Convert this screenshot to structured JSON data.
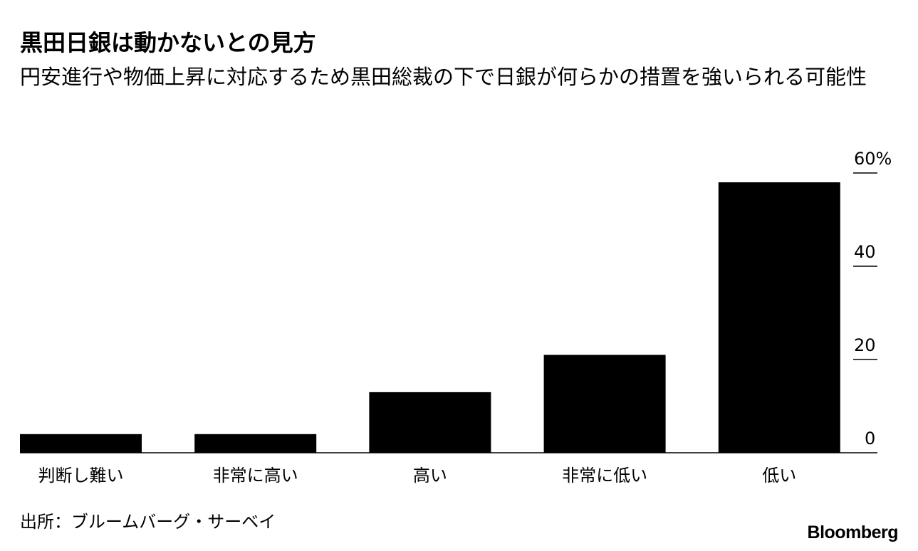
{
  "title": "黒田日銀は動かないとの見方",
  "subtitle": "円安進行や物価上昇に対応するため黒田総裁の下で日銀が何らかの措置を強いられる可能性",
  "source": "出所：ブルームバーグ・サーベイ",
  "logo": "Bloomberg",
  "chart_data": {
    "type": "bar",
    "categories": [
      "判断し難い",
      "非常に高い",
      "高い",
      "非常に低い",
      "低い"
    ],
    "values": [
      4,
      4,
      13,
      21,
      58
    ],
    "ylim": [
      0,
      60
    ],
    "yticks": [
      0,
      20,
      40,
      60
    ],
    "ytick_labels": [
      "0",
      "20",
      "40",
      "60%"
    ],
    "bar_color": "#000000",
    "axis_side": "right",
    "grid": false
  }
}
